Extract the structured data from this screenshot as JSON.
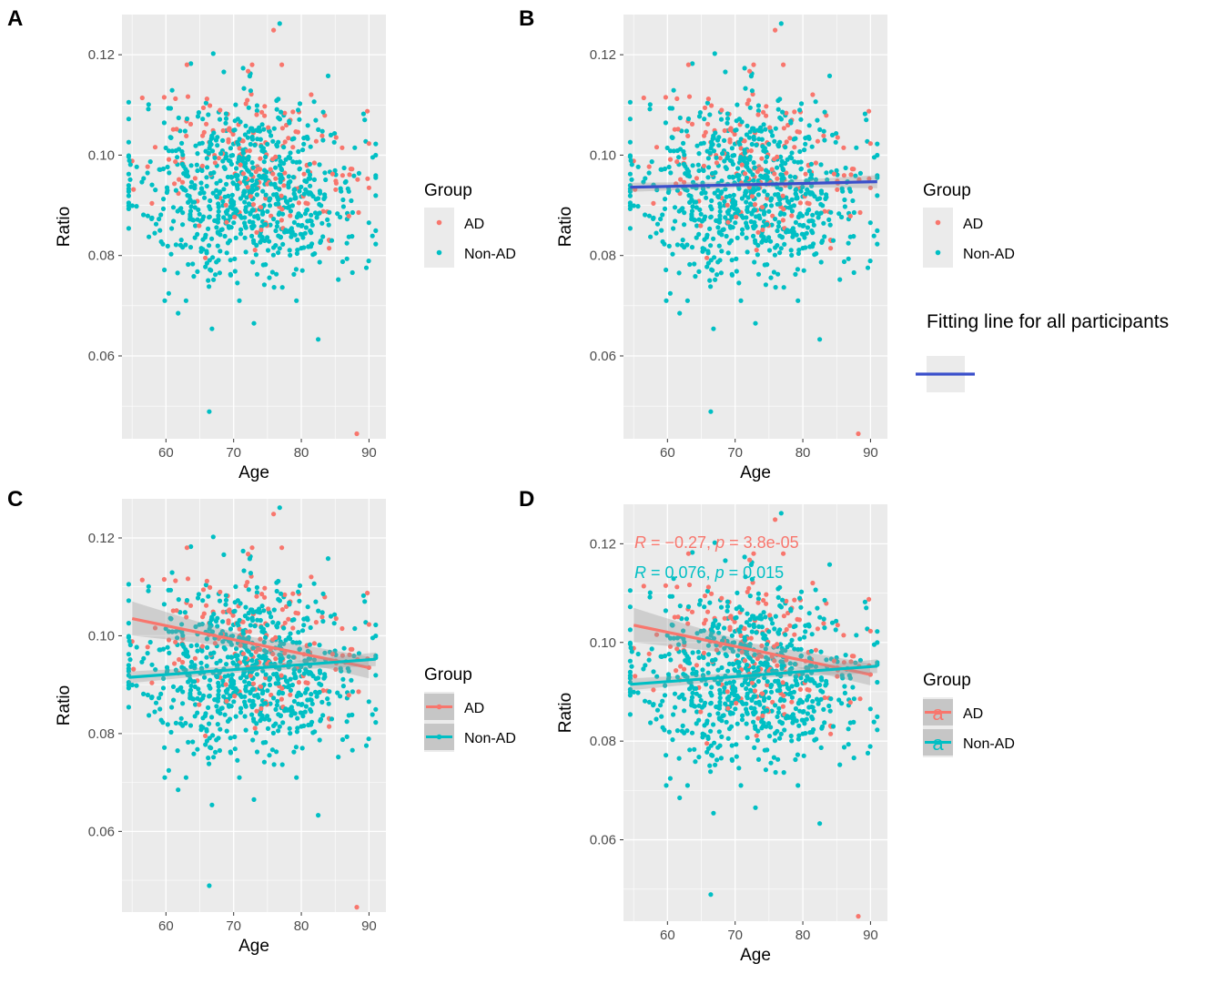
{
  "figure": {
    "colors": {
      "ad": "#F8766D",
      "non_ad": "#00BFC4",
      "overall_fit": "#3A4FCB",
      "panel_background": "#EBEBEB",
      "grid": "#FFFFFF",
      "ribbon": "#999999"
    },
    "legend": {
      "title": "Group",
      "items": [
        "AD",
        "Non-AD"
      ],
      "fit_line_title": "Fitting line for all participants"
    },
    "panels": [
      {
        "letter": "A",
        "xlabel": "Age",
        "ylabel": "Ratio"
      },
      {
        "letter": "B",
        "xlabel": "Age",
        "ylabel": "Ratio"
      },
      {
        "letter": "C",
        "xlabel": "Age",
        "ylabel": "Ratio"
      },
      {
        "letter": "D",
        "xlabel": "Age",
        "ylabel": "Ratio"
      }
    ]
  },
  "chart_data": [
    {
      "panel": "A",
      "type": "scatter",
      "title": "",
      "xlabel": "Age",
      "ylabel": "Ratio",
      "xlim": [
        53.5,
        92.5
      ],
      "ylim": [
        0.0435,
        0.128
      ],
      "xticks": [
        60,
        70,
        80,
        90
      ],
      "yticks": [
        0.06,
        0.08,
        0.1,
        0.12
      ],
      "ytick_labels": [
        "0.06",
        "0.08",
        "0.10",
        "0.12"
      ],
      "grid": true,
      "legend": "right",
      "legend_title": "Group",
      "series": [
        {
          "name": "AD",
          "color": "#F8766D",
          "n_points_approx": 180,
          "x_range": [
            55,
            90
          ],
          "y_mean_approx": 0.097
        },
        {
          "name": "Non-AD",
          "color": "#00BFC4",
          "n_points_approx": 760,
          "x_range": [
            54,
            91
          ],
          "y_mean_approx": 0.093
        }
      ],
      "notable_points": [
        {
          "group": "AD",
          "x": 88.2,
          "y": 0.0445
        },
        {
          "group": "Non-AD",
          "x": 66.4,
          "y": 0.0489
        },
        {
          "group": "Non-AD",
          "x": 76.8,
          "y": 0.1262
        },
        {
          "group": "AD",
          "x": 75.9,
          "y": 0.1249
        },
        {
          "group": "Non-AD",
          "x": 82.5,
          "y": 0.0633
        },
        {
          "group": "Non-AD",
          "x": 66.8,
          "y": 0.0654
        },
        {
          "group": "Non-AD",
          "x": 61.8,
          "y": 0.0685
        },
        {
          "group": "Non-AD",
          "x": 73.0,
          "y": 0.0665
        }
      ]
    },
    {
      "panel": "B",
      "type": "scatter",
      "title": "",
      "xlabel": "Age",
      "ylabel": "Ratio",
      "xlim": [
        53.5,
        92.5
      ],
      "ylim": [
        0.0435,
        0.128
      ],
      "xticks": [
        60,
        70,
        80,
        90
      ],
      "yticks": [
        0.06,
        0.08,
        0.1,
        0.12
      ],
      "ytick_labels": [
        "0.06",
        "0.08",
        "0.10",
        "0.12"
      ],
      "grid": true,
      "legend": "right",
      "legend_title": "Group",
      "series": [
        {
          "name": "AD",
          "color": "#F8766D"
        },
        {
          "name": "Non-AD",
          "color": "#00BFC4"
        }
      ],
      "fit_lines": [
        {
          "name": "Fitting line for all participants",
          "color": "#3A4FCB",
          "x": [
            54.5,
            91
          ],
          "y": [
            0.0936,
            0.0947
          ],
          "ci_halfwidth": [
            0.0009,
            0.0013
          ]
        }
      ]
    },
    {
      "panel": "C",
      "type": "scatter",
      "title": "",
      "xlabel": "Age",
      "ylabel": "Ratio",
      "xlim": [
        53.5,
        92.5
      ],
      "ylim": [
        0.0435,
        0.128
      ],
      "xticks": [
        60,
        70,
        80,
        90
      ],
      "yticks": [
        0.06,
        0.08,
        0.1,
        0.12
      ],
      "ytick_labels": [
        "0.06",
        "0.08",
        "0.10",
        "0.12"
      ],
      "grid": true,
      "legend": "right",
      "legend_title": "Group",
      "series": [
        {
          "name": "AD",
          "color": "#F8766D"
        },
        {
          "name": "Non-AD",
          "color": "#00BFC4"
        }
      ],
      "fit_lines": [
        {
          "name": "AD",
          "color": "#F8766D",
          "x": [
            55,
            90
          ],
          "y": [
            0.1035,
            0.0935
          ],
          "ci_halfwidth": [
            0.0035,
            0.0022
          ]
        },
        {
          "name": "Non-AD",
          "color": "#00BFC4",
          "x": [
            54.5,
            91
          ],
          "y": [
            0.0915,
            0.0952
          ],
          "ci_halfwidth": [
            0.0012,
            0.0014
          ]
        }
      ]
    },
    {
      "panel": "D",
      "type": "scatter",
      "title": "",
      "xlabel": "Age",
      "ylabel": "Ratio",
      "xlim": [
        53.5,
        92.5
      ],
      "ylim": [
        0.0435,
        0.128
      ],
      "xticks": [
        60,
        70,
        80,
        90
      ],
      "yticks": [
        0.06,
        0.08,
        0.1,
        0.12
      ],
      "ytick_labels": [
        "0.06",
        "0.08",
        "0.10",
        "0.12"
      ],
      "grid": true,
      "legend": "right",
      "legend_title": "Group",
      "series": [
        {
          "name": "AD",
          "color": "#F8766D"
        },
        {
          "name": "Non-AD",
          "color": "#00BFC4"
        }
      ],
      "fit_lines": [
        {
          "name": "AD",
          "color": "#F8766D",
          "x": [
            55,
            90
          ],
          "y": [
            0.1035,
            0.0935
          ],
          "ci_halfwidth": [
            0.0035,
            0.0022
          ]
        },
        {
          "name": "Non-AD",
          "color": "#00BFC4",
          "x": [
            54.5,
            91
          ],
          "y": [
            0.0915,
            0.0952
          ],
          "ci_halfwidth": [
            0.0012,
            0.0014
          ]
        }
      ],
      "annotations": [
        {
          "group": "AD",
          "color": "#F8766D",
          "R_label": "R",
          "R_value": " = −0.27, ",
          "p_label": "p",
          "p_value": " = 3.8e-05"
        },
        {
          "group": "Non-AD",
          "color": "#00BFC4",
          "R_label": "R",
          "R_value": " = 0.076, ",
          "p_label": "p",
          "p_value": " = 0.015"
        }
      ],
      "legend_key_glyph": "a"
    }
  ]
}
